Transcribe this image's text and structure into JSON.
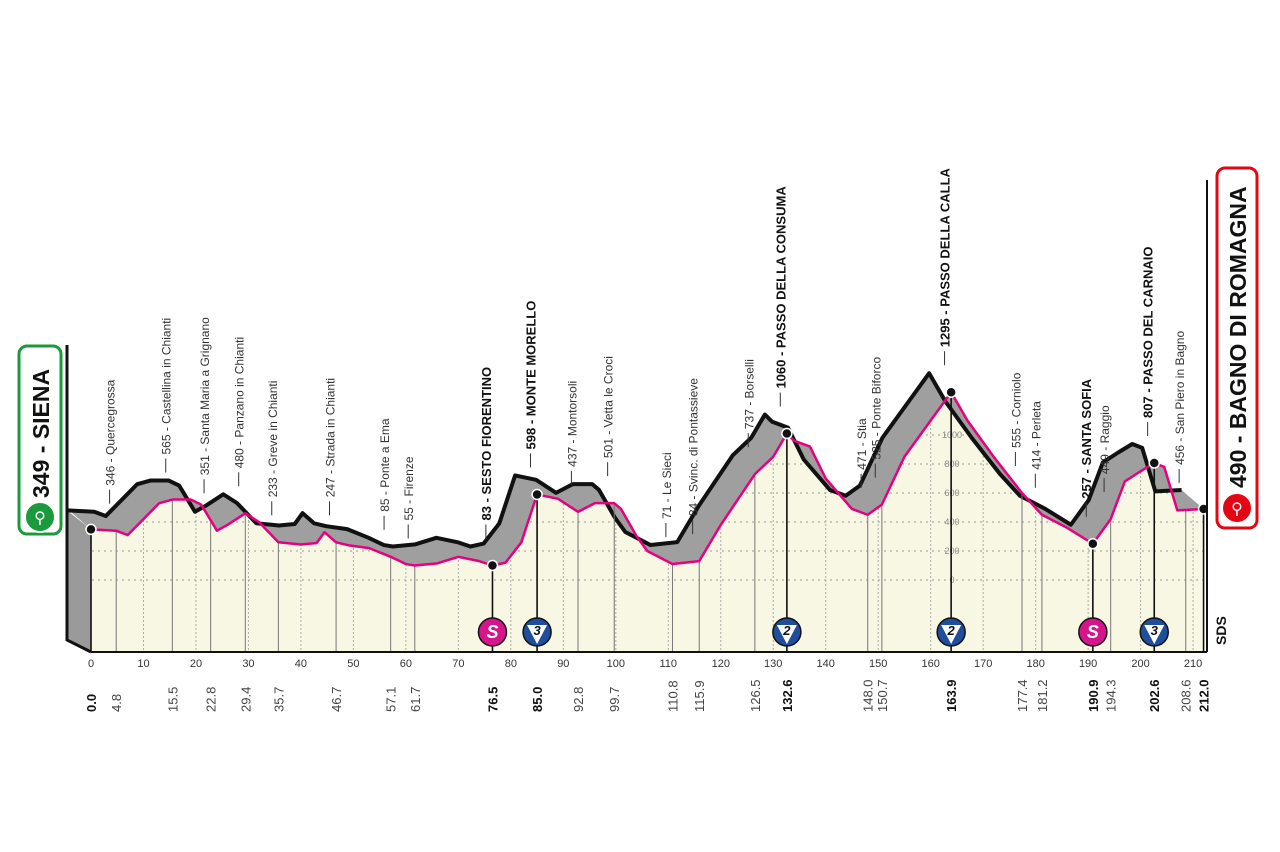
{
  "chart_data": {
    "type": "area",
    "xlabel": "",
    "ylabel": "",
    "xlim": [
      0,
      212
    ],
    "ylim": [
      0,
      1300
    ],
    "x_ticks": [
      0,
      10,
      20,
      30,
      40,
      50,
      60,
      70,
      80,
      90,
      100,
      110,
      120,
      130,
      140,
      150,
      160,
      170,
      180,
      190,
      200,
      210
    ],
    "y_ticks": [
      0,
      200,
      400,
      600,
      800,
      1000
    ],
    "grid": true,
    "colors": {
      "road": "#e6007e",
      "band": "#9a9a9a",
      "fill": "#f7f7e4",
      "start": "#1a9a3a",
      "finish": "#e30613",
      "sprint": "#d6158c",
      "climb": "#1f4f9c"
    },
    "profile": [
      [
        0,
        349
      ],
      [
        4.8,
        340
      ],
      [
        7,
        310
      ],
      [
        10,
        420
      ],
      [
        13,
        530
      ],
      [
        15.5,
        555
      ],
      [
        19,
        555
      ],
      [
        21,
        520
      ],
      [
        24,
        340
      ],
      [
        26,
        380
      ],
      [
        29.4,
        460
      ],
      [
        32,
        400
      ],
      [
        35.7,
        260
      ],
      [
        40,
        245
      ],
      [
        43,
        255
      ],
      [
        44.5,
        330
      ],
      [
        46.7,
        260
      ],
      [
        49,
        240
      ],
      [
        53,
        220
      ],
      [
        57.1,
        160
      ],
      [
        60,
        110
      ],
      [
        61.7,
        100
      ],
      [
        66,
        115
      ],
      [
        70,
        160
      ],
      [
        74,
        130
      ],
      [
        76.5,
        100
      ],
      [
        79,
        120
      ],
      [
        82,
        260
      ],
      [
        84,
        480
      ],
      [
        85,
        590
      ],
      [
        89,
        560
      ],
      [
        92.8,
        470
      ],
      [
        96,
        530
      ],
      [
        99.7,
        530
      ],
      [
        101,
        490
      ],
      [
        104,
        300
      ],
      [
        106,
        200
      ],
      [
        110.8,
        110
      ],
      [
        115.9,
        130
      ],
      [
        120,
        380
      ],
      [
        126.5,
        730
      ],
      [
        130,
        850
      ],
      [
        132.6,
        1010
      ],
      [
        134,
        960
      ],
      [
        137,
        920
      ],
      [
        140,
        700
      ],
      [
        145,
        490
      ],
      [
        148,
        450
      ],
      [
        150.7,
        520
      ],
      [
        155,
        850
      ],
      [
        160,
        1100
      ],
      [
        163.9,
        1295
      ],
      [
        167,
        1100
      ],
      [
        172,
        850
      ],
      [
        177.4,
        600
      ],
      [
        181.2,
        450
      ],
      [
        186,
        360
      ],
      [
        190.9,
        250
      ],
      [
        194.3,
        420
      ],
      [
        197,
        680
      ],
      [
        200,
        750
      ],
      [
        202.6,
        807
      ],
      [
        204.5,
        780
      ],
      [
        207,
        480
      ],
      [
        212,
        490
      ]
    ],
    "points": [
      {
        "km": "0.0",
        "x": 0,
        "label": "",
        "bold": true
      },
      {
        "km": "4.8",
        "x": 4.8,
        "label": "346 - Quercegrossa"
      },
      {
        "km": "15.5",
        "x": 15.5,
        "label": "565 - Castellina in Chianti"
      },
      {
        "km": "22.8",
        "x": 22.8,
        "label": "351 - Santa Maria a Grignano"
      },
      {
        "km": "29.4",
        "x": 29.4,
        "label": "480 - Panzano in Chianti"
      },
      {
        "km": "35.7",
        "x": 35.7,
        "label": "233 - Greve in Chianti"
      },
      {
        "km": "46.7",
        "x": 46.7,
        "label": "247 - Strada in Chianti"
      },
      {
        "km": "57.1",
        "x": 57.1,
        "label": "85 - Ponte a Ema"
      },
      {
        "km": "61.7",
        "x": 61.7,
        "label": "55 - Firenze"
      },
      {
        "km": "76.5",
        "x": 76.5,
        "label": "83 - SESTO FIORENTINO",
        "bold": true,
        "badge": "S"
      },
      {
        "km": "85.0",
        "x": 85.0,
        "label": "598 - MONTE MORELLO",
        "bold": true,
        "badge": "3"
      },
      {
        "km": "92.8",
        "x": 92.8,
        "label": "437 - Montorsoli"
      },
      {
        "km": "99.7",
        "x": 99.7,
        "label": "501 - Vetta le Croci"
      },
      {
        "km": "110.8",
        "x": 110.8,
        "label": "71 - Le Sieci"
      },
      {
        "km": "115.9",
        "x": 115.9,
        "label": "84 - Svinc. di Pontassieve"
      },
      {
        "km": "126.5",
        "x": 126.5,
        "label": "737 - Borselli"
      },
      {
        "km": "132.6",
        "x": 132.6,
        "label": "1060 - PASSO DELLA CONSUMA",
        "bold": true,
        "badge": "2"
      },
      {
        "km": "148.0",
        "x": 148.0,
        "label": "471 - Stia"
      },
      {
        "km": "150.7",
        "x": 150.7,
        "label": "525 - Ponte Biforco"
      },
      {
        "km": "163.9",
        "x": 163.9,
        "label": "1295 - PASSO DELLA CALLA",
        "bold": true,
        "badge": "2"
      },
      {
        "km": "177.4",
        "x": 177.4,
        "label": "555 - Corniolo"
      },
      {
        "km": "181.2",
        "x": 181.2,
        "label": "414 - Perleta"
      },
      {
        "km": "190.9",
        "x": 190.9,
        "label": "257 - SANTA SOFIA",
        "bold": true,
        "badge": "S"
      },
      {
        "km": "194.3",
        "x": 194.3,
        "label": "449 - Raggio"
      },
      {
        "km": "202.6",
        "x": 202.6,
        "label": "807 - PASSO DEL CARNAIO",
        "bold": true,
        "badge": "3"
      },
      {
        "km": "208.6",
        "x": 208.6,
        "label": "456 - San Piero in Bagno"
      },
      {
        "km": "212.0",
        "x": 212.0,
        "label": "",
        "bold": true
      }
    ],
    "start": {
      "label": "349 - SIENA",
      "icon": "cyclist-icon"
    },
    "finish": {
      "label": "490 - BAGNO DI ROMAGNA",
      "icon": "cyclist-icon"
    },
    "credit": "SDS"
  }
}
